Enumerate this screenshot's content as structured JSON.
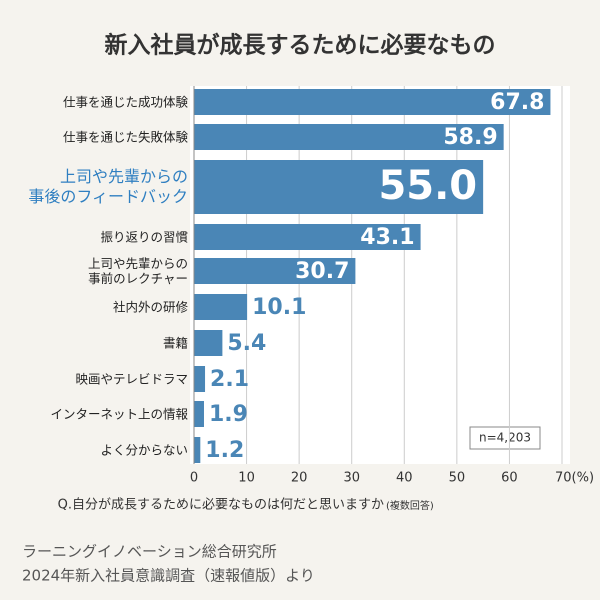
{
  "chart_data": {
    "type": "bar",
    "orientation": "horizontal",
    "title": "新入社員が成長するために必要なもの",
    "categories": [
      "仕事を通じた成功体験",
      "仕事を通じた失敗体験",
      "上司や先輩からの\n事後のフィードバック",
      "振り返りの習慣",
      "上司や先輩からの\n事前のレクチャー",
      "社内外の研修",
      "書籍",
      "映画やテレビドラマ",
      "インターネット上の情報",
      "よく分からない"
    ],
    "values": [
      67.8,
      58.9,
      55.0,
      43.1,
      30.7,
      10.1,
      5.4,
      2.1,
      1.9,
      1.2
    ],
    "value_labels": [
      "67.8",
      "58.9",
      "55.0",
      "43.1",
      "30.7",
      "10.1",
      "5.4",
      "2.1",
      "1.9",
      "1.2"
    ],
    "highlight": 2,
    "color": "#4a86b6",
    "highlight_color": "#2f7fc1",
    "xlim": [
      0,
      70
    ],
    "xticks": [
      0,
      10,
      20,
      30,
      40,
      50,
      60,
      {
        "value": 70,
        "label": "70(%)"
      }
    ],
    "grid": true,
    "annotation": "n=4,203",
    "x_label": "Q.自分が成長するために必要なものは何だと思いますか",
    "x_label_note": "(複数回答)",
    "source": [
      "ラーニングイノベーション総合研究所",
      "2024年新入社員意識調査（速報値版）より"
    ]
  }
}
